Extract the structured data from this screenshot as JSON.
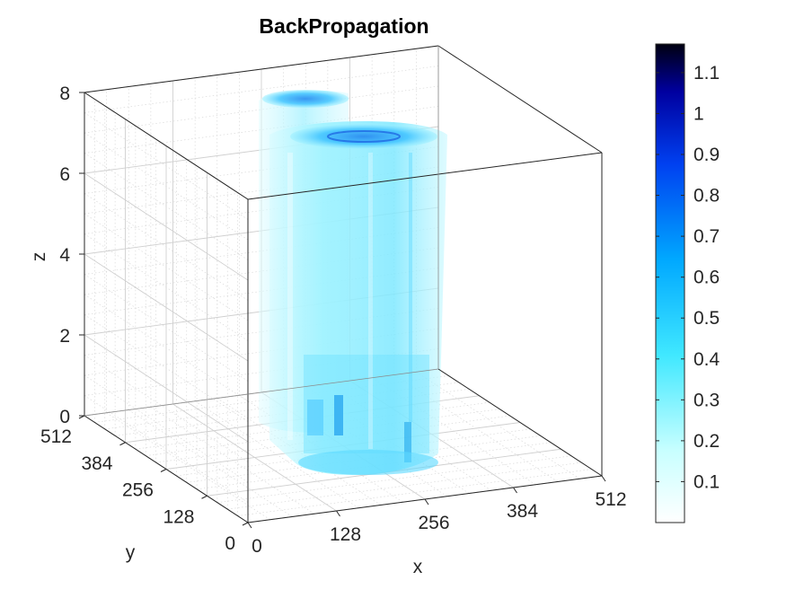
{
  "chart_data": {
    "type": "volume",
    "title": "BackPropagation",
    "xlabel": "x",
    "ylabel": "y",
    "zlabel": "z",
    "xlim": [
      0,
      512
    ],
    "ylim": [
      0,
      512
    ],
    "zlim": [
      0,
      8
    ],
    "x_ticks": [
      "0",
      "128",
      "256",
      "384",
      "512"
    ],
    "y_ticks": [
      "0",
      "128",
      "256",
      "384",
      "512"
    ],
    "z_ticks": [
      "0",
      "2",
      "4",
      "6",
      "8"
    ],
    "grid": true,
    "colorbar": {
      "ticks": [
        "0.1",
        "0.2",
        "0.3",
        "0.4",
        "0.5",
        "0.6",
        "0.7",
        "0.8",
        "0.9",
        "1",
        "1.1"
      ],
      "tick_values": [
        0.1,
        0.2,
        0.3,
        0.4,
        0.5,
        0.6,
        0.7,
        0.8,
        0.9,
        1.0,
        1.1
      ],
      "range": [
        0,
        1.17
      ],
      "colors": [
        "#ffffff",
        "#80ffff",
        "#00c8ff",
        "#0064ff",
        "#0000b4",
        "#000000"
      ]
    }
  }
}
